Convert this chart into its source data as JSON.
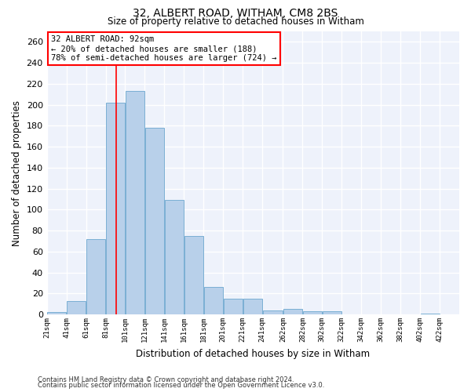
{
  "title1": "32, ALBERT ROAD, WITHAM, CM8 2BS",
  "title2": "Size of property relative to detached houses in Witham",
  "xlabel": "Distribution of detached houses by size in Witham",
  "ylabel": "Number of detached properties",
  "footer1": "Contains HM Land Registry data © Crown copyright and database right 2024.",
  "footer2": "Contains public sector information licensed under the Open Government Licence v3.0.",
  "bar_color": "#b8d0ea",
  "bar_edge_color": "#7aafd4",
  "background_color": "#eef2fb",
  "grid_color": "#ffffff",
  "red_line_x": 92,
  "annotation_text": "32 ALBERT ROAD: 92sqm\n← 20% of detached houses are smaller (188)\n78% of semi-detached houses are larger (724) →",
  "bins": [
    21,
    41,
    61,
    81,
    101,
    121,
    141,
    161,
    181,
    201,
    221,
    241,
    262,
    282,
    302,
    322,
    342,
    362,
    382,
    402,
    422
  ],
  "counts": [
    2,
    13,
    72,
    202,
    213,
    178,
    109,
    75,
    26,
    15,
    15,
    4,
    5,
    3,
    3,
    0,
    0,
    0,
    0,
    1
  ],
  "xlim_left": 21,
  "xlim_right": 442,
  "ylim_top": 270,
  "yticks": [
    0,
    20,
    40,
    60,
    80,
    100,
    120,
    140,
    160,
    180,
    200,
    220,
    240,
    260
  ],
  "tick_labels": [
    "21sqm",
    "41sqm",
    "61sqm",
    "81sqm",
    "101sqm",
    "121sqm",
    "141sqm",
    "161sqm",
    "181sqm",
    "201sqm",
    "221sqm",
    "241sqm",
    "262sqm",
    "282sqm",
    "302sqm",
    "322sqm",
    "342sqm",
    "362sqm",
    "382sqm",
    "402sqm",
    "422sqm"
  ]
}
